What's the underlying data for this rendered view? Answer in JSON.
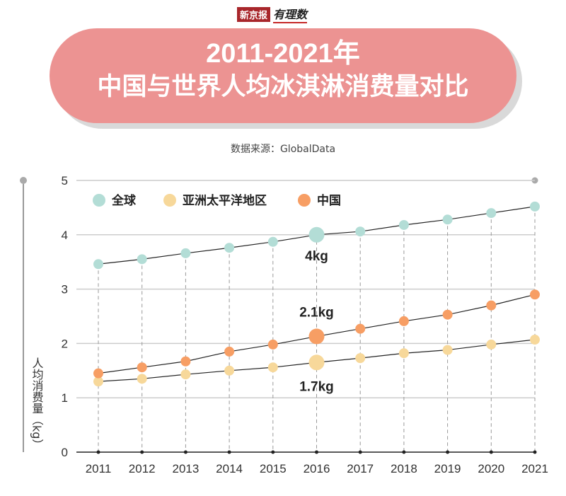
{
  "logo": {
    "brand": "新京报",
    "column": "有理数"
  },
  "title": {
    "line1": "2011-2021年",
    "line2": "中国与世界人均冰淇淋消费量对比"
  },
  "source": "数据来源：GlobalData",
  "colors": {
    "global": "#b3ddd6",
    "asia": "#f7d89a",
    "china": "#f79e64",
    "banner": "#ec9392"
  },
  "chart_data": {
    "type": "line",
    "categories": [
      "2011",
      "2012",
      "2013",
      "2014",
      "2015",
      "2016",
      "2017",
      "2018",
      "2019",
      "2020",
      "2021"
    ],
    "ylabel": "人均消费量（kg）",
    "ylim": [
      0,
      5
    ],
    "yticks": [
      "0",
      "1",
      "2",
      "3",
      "4",
      "5"
    ],
    "grid": true,
    "legend_position": "top-left",
    "series": [
      {
        "name": "全球",
        "key": "global",
        "values": [
          3.46,
          3.55,
          3.66,
          3.76,
          3.87,
          4.0,
          4.06,
          4.18,
          4.28,
          4.4,
          4.52
        ]
      },
      {
        "name": "亚洲太平洋地区",
        "key": "asia",
        "values": [
          1.3,
          1.35,
          1.43,
          1.5,
          1.56,
          1.65,
          1.73,
          1.82,
          1.88,
          1.98,
          2.07
        ]
      },
      {
        "name": "中国",
        "key": "china",
        "values": [
          1.45,
          1.56,
          1.67,
          1.85,
          1.98,
          2.13,
          2.27,
          2.41,
          2.53,
          2.7,
          2.9
        ]
      }
    ],
    "annotations": [
      {
        "text": "4kg",
        "series": "global",
        "category": "2016"
      },
      {
        "text": "2.1kg",
        "series": "china",
        "category": "2016"
      },
      {
        "text": "1.7kg",
        "series": "asia",
        "category": "2016"
      }
    ]
  }
}
